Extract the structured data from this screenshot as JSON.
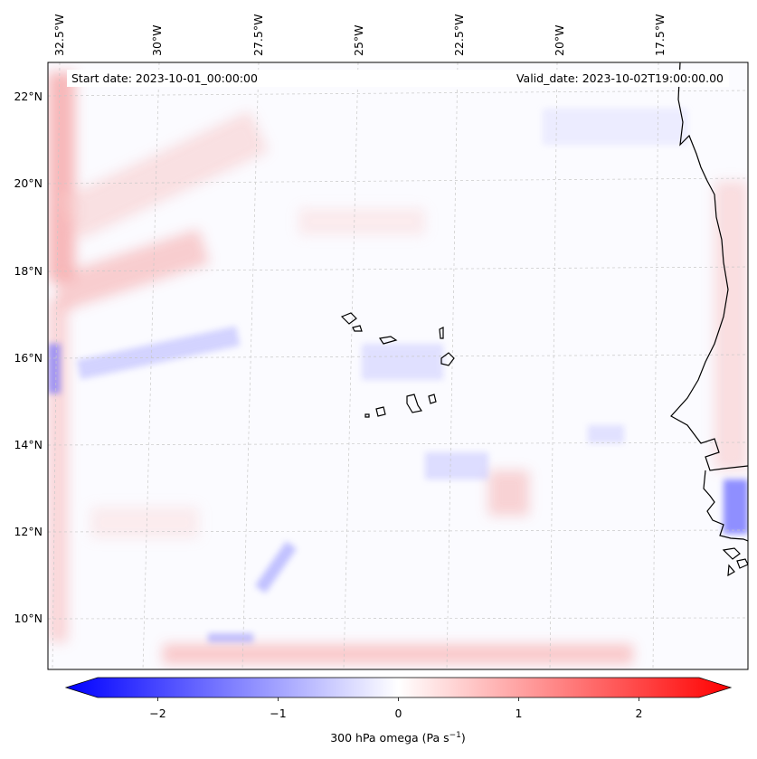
{
  "map": {
    "start_date": "Start date: 2023-10-01_00:00:00",
    "valid_date": "Valid_date: 2023-10-02T19:00:00.00",
    "lon_labels": [
      "32.5°W",
      "30°W",
      "27.5°W",
      "25°W",
      "22.5°W",
      "20°W",
      "17.5°W"
    ],
    "lat_labels": [
      "22°N",
      "20°N",
      "18°N",
      "16°N",
      "14°N",
      "12°N",
      "10°N"
    ],
    "colors": {
      "negative": "#0000ff",
      "neutral": "#ffffff",
      "positive": "#ff0000",
      "coast": "#000000",
      "grid": "#c8c8c8"
    }
  },
  "colorbar": {
    "label": "300 hPa omega (Pa s",
    "label_sup": "−1",
    "label_close": ")",
    "ticks": [
      "−2",
      "−1",
      "0",
      "1",
      "2"
    ],
    "tick_values": [
      -2,
      -1,
      0,
      1,
      2
    ],
    "range": [
      -2.5,
      2.5
    ],
    "extend": "both"
  }
}
